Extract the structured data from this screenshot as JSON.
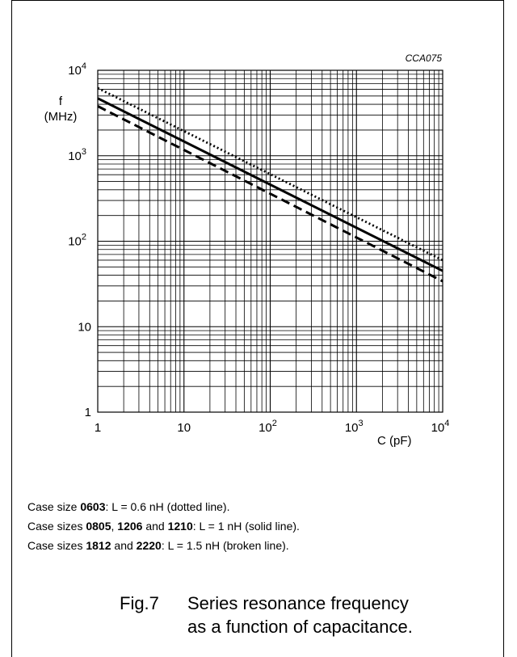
{
  "chart_data": {
    "type": "line",
    "code": "CCA075",
    "scale": "log-log",
    "xlabel": "C  (pF)",
    "ylabel_line1": "f",
    "ylabel_line2": "(MHz)",
    "xlim": [
      1,
      10000
    ],
    "ylim": [
      1,
      10000
    ],
    "grid": true,
    "x_ticks": [
      {
        "v": 1,
        "base": "1",
        "exp": ""
      },
      {
        "v": 10,
        "base": "10",
        "exp": ""
      },
      {
        "v": 100,
        "base": "10",
        "exp": "2"
      },
      {
        "v": 1000,
        "base": "10",
        "exp": "3"
      },
      {
        "v": 10000,
        "base": "10",
        "exp": "4"
      }
    ],
    "y_ticks": [
      {
        "v": 1,
        "base": "1",
        "exp": ""
      },
      {
        "v": 10,
        "base": "10",
        "exp": ""
      },
      {
        "v": 100,
        "base": "10",
        "exp": "2"
      },
      {
        "v": 1000,
        "base": "10",
        "exp": "3"
      },
      {
        "v": 10000,
        "base": "10",
        "exp": "4"
      }
    ],
    "series": [
      {
        "style": "dotted",
        "x": [
          1,
          10000
        ],
        "y": [
          6200,
          60
        ]
      },
      {
        "style": "solid",
        "x": [
          1,
          10000
        ],
        "y": [
          4700,
          45
        ]
      },
      {
        "style": "dashed",
        "x": [
          1,
          10000
        ],
        "y": [
          3800,
          34
        ]
      }
    ]
  },
  "caption": {
    "line1": {
      "prefix": "Case size ",
      "b1": "0603",
      "rest": ": L = 0.6 nH (dotted line)."
    },
    "line2": {
      "prefix": "Case sizes ",
      "b1": "0805",
      "sep1": ", ",
      "b2": "1206",
      "sep2": " and ",
      "b3": "1210",
      "rest": ": L = 1 nH (solid line)."
    },
    "line3": {
      "prefix": "Case sizes ",
      "b1": "1812",
      "sep1": " and ",
      "b2": "2220",
      "rest": ": L = 1.5 nH (broken line)."
    }
  },
  "figure": {
    "number": "Fig.7",
    "title_line1": "Series resonance frequency",
    "title_line2": "as a function of capacitance."
  }
}
